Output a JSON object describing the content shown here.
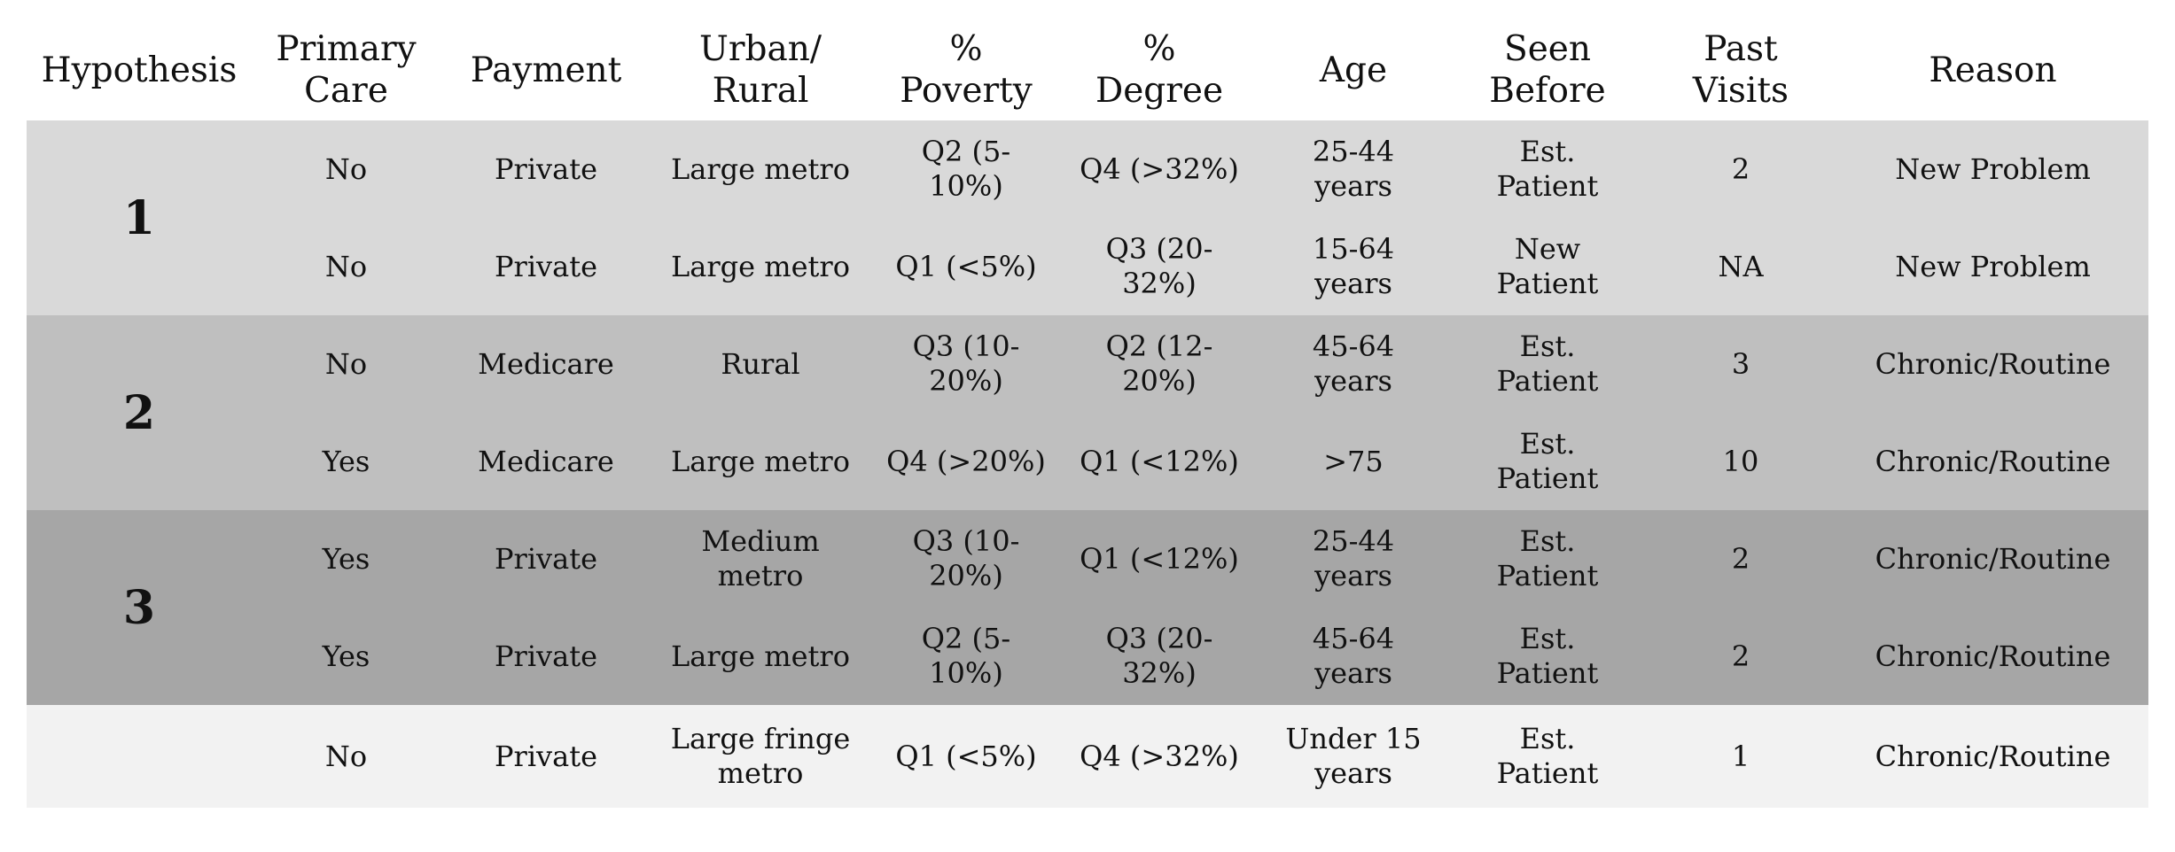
{
  "headers": [
    "Hypothesis",
    "Primary\nCare",
    "Payment",
    "Urban/\nRural",
    "%\nPoverty",
    "%\nDegree",
    "Age",
    "Seen\nBefore",
    "Past\nVisits",
    "Reason"
  ],
  "groups": [
    {
      "label": "1",
      "rows": [
        [
          "No",
          "Private",
          "Large metro",
          "Q2 (5-\n10%)",
          "Q4 (>32%)",
          "25-44\nyears",
          "Est.\nPatient",
          "2",
          "New Problem"
        ],
        [
          "No",
          "Private",
          "Large metro",
          "Q1 (<5%)",
          "Q3 (20-\n32%)",
          "15-64\nyears",
          "New\nPatient",
          "NA",
          "New Problem"
        ]
      ]
    },
    {
      "label": "2",
      "rows": [
        [
          "No",
          "Medicare",
          "Rural",
          "Q3 (10-\n20%)",
          "Q2 (12-\n20%)",
          "45-64\nyears",
          "Est.\nPatient",
          "3",
          "Chronic/Routine"
        ],
        [
          "Yes",
          "Medicare",
          "Large metro",
          "Q4 (>20%)",
          "Q1 (<12%)",
          ">75",
          "Est.\nPatient",
          "10",
          "Chronic/Routine"
        ]
      ]
    },
    {
      "label": "3",
      "rows": [
        [
          "Yes",
          "Private",
          "Medium\nmetro",
          "Q3 (10-\n20%)",
          "Q1 (<12%)",
          "25-44\nyears",
          "Est.\nPatient",
          "2",
          "Chronic/Routine"
        ],
        [
          "Yes",
          "Private",
          "Large metro",
          "Q2 (5-\n10%)",
          "Q3 (20-\n32%)",
          "45-64\nyears",
          "Est.\nPatient",
          "2",
          "Chronic/Routine"
        ]
      ]
    },
    {
      "label": "",
      "rows": [
        [
          "No",
          "Private",
          "Large fringe\nmetro",
          "Q1 (<5%)",
          "Q4 (>32%)",
          "Under 15\nyears",
          "Est.\nPatient",
          "1",
          "Chronic/Routine"
        ]
      ]
    }
  ],
  "colors": {
    "group1": "#d9d9d9",
    "group2": "#bfbfbf",
    "group3": "#a6a6a6",
    "group4": "#f2f2f2"
  }
}
